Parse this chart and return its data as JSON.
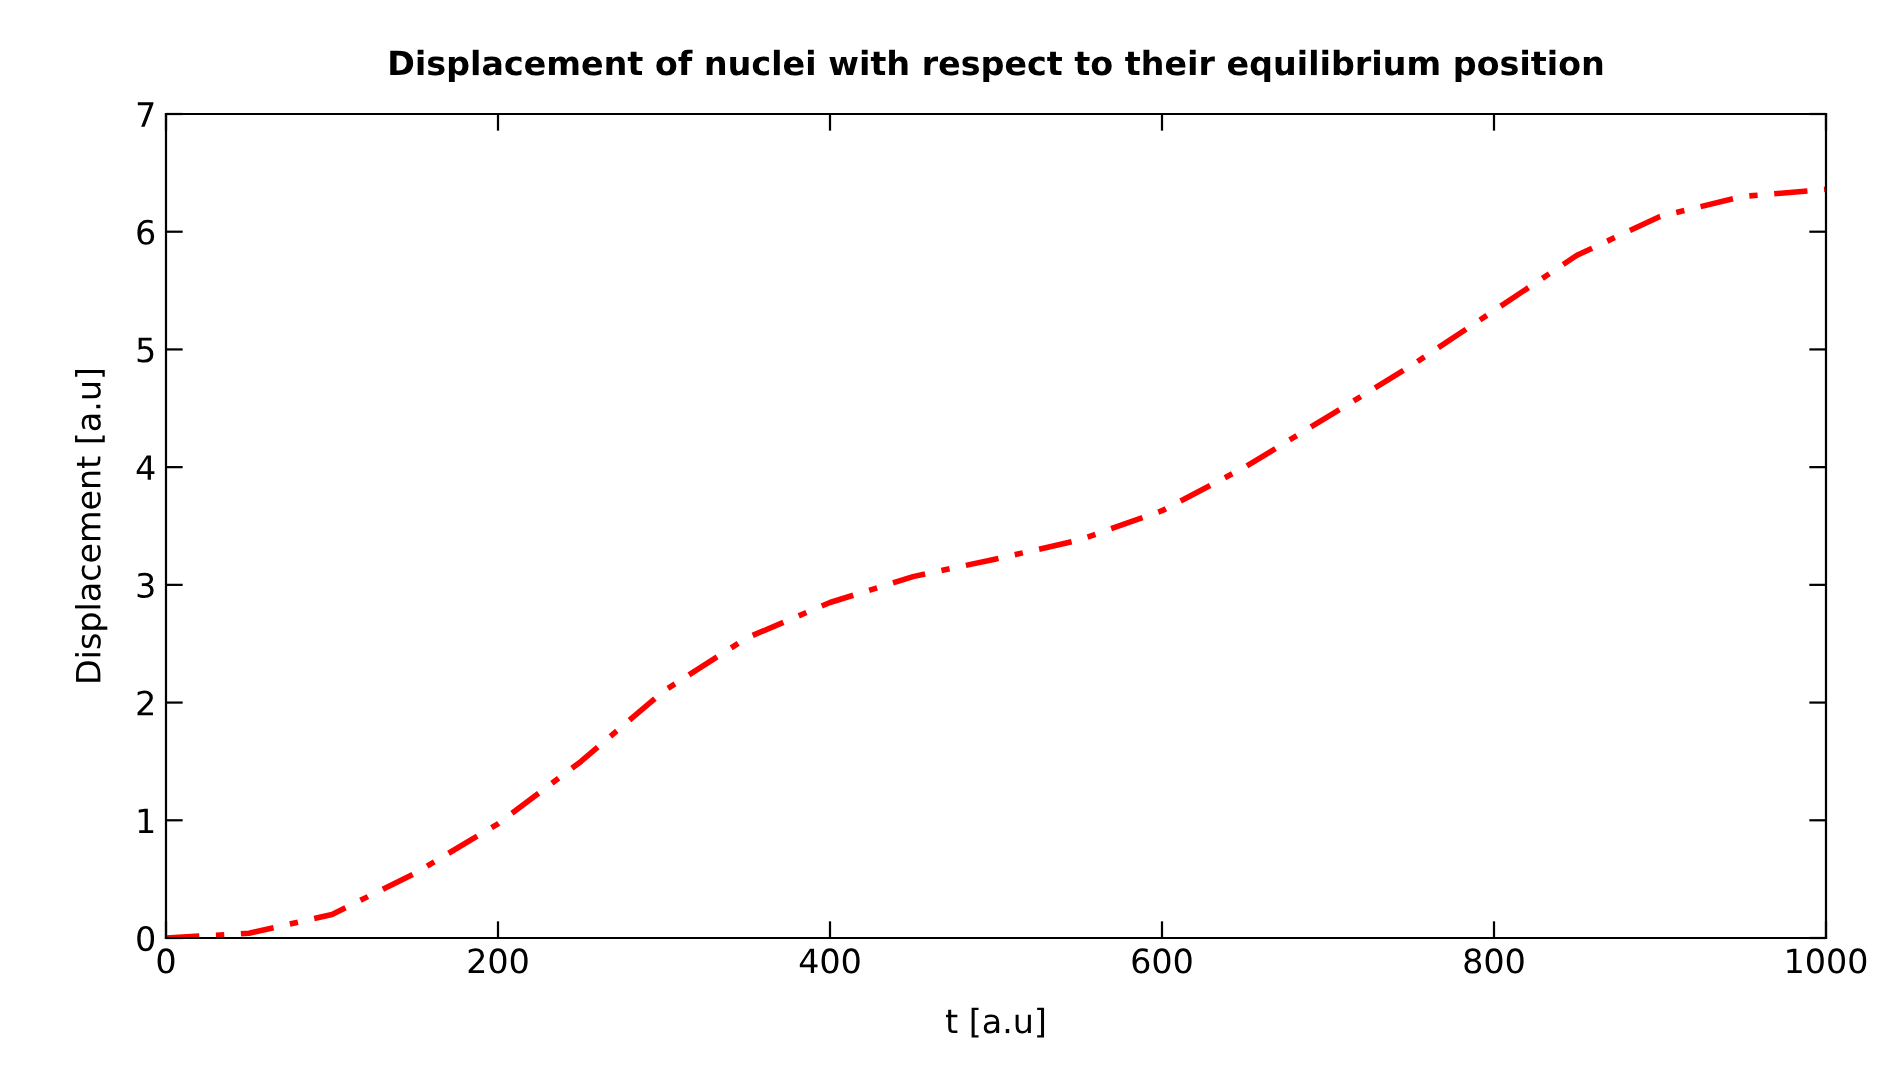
{
  "chart_data": {
    "type": "line",
    "title": "Displacement of nuclei with respect to their equilibrium position",
    "xlabel": "t [a.u]",
    "ylabel": "Displacement [a.u]",
    "x": [
      0,
      50,
      100,
      150,
      200,
      250,
      300,
      350,
      400,
      450,
      500,
      550,
      600,
      650,
      700,
      750,
      800,
      850,
      900,
      950,
      1000
    ],
    "series": [
      {
        "color": "#ff0000",
        "values": [
          0,
          0.04,
          0.2,
          0.55,
          0.97,
          1.5,
          2.1,
          2.55,
          2.85,
          3.07,
          3.22,
          3.38,
          3.63,
          4.0,
          4.43,
          4.86,
          5.33,
          5.8,
          6.13,
          6.3,
          6.36
        ]
      }
    ],
    "xlim": [
      0,
      1000
    ],
    "ylim": [
      0,
      7
    ],
    "xticks": [
      0,
      200,
      400,
      600,
      800,
      1000
    ],
    "yticks": [
      0,
      1,
      2,
      3,
      4,
      5,
      6,
      7
    ],
    "grid": false,
    "legend": false,
    "marker": "none",
    "line_style": "dashdot"
  }
}
